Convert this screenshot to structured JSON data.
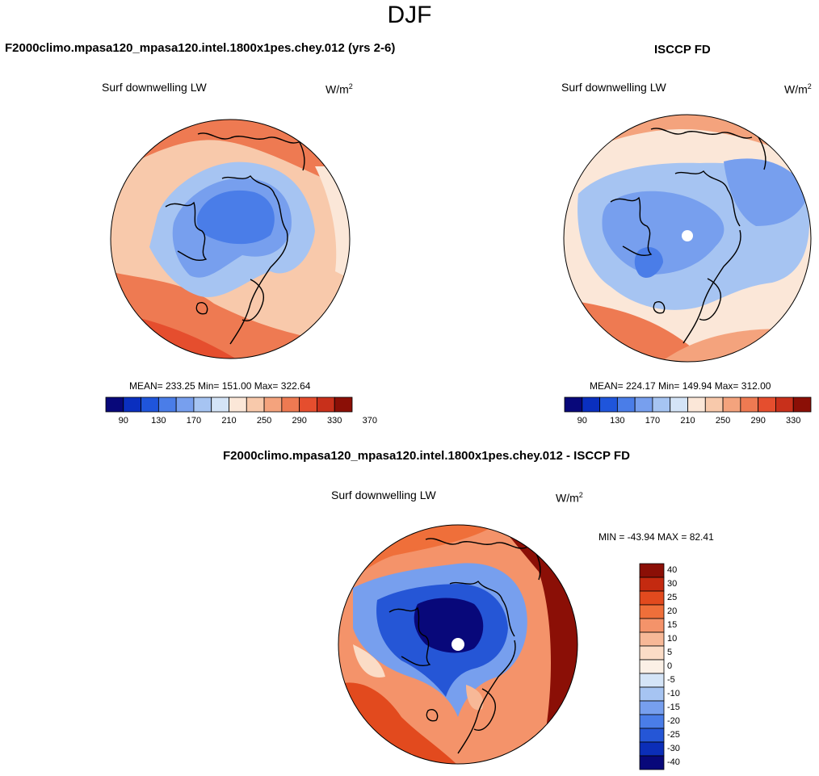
{
  "page_title": "DJF",
  "panels": {
    "model": {
      "title": "F2000climo.mpasa120_mpasa120.intel.1800x1pes.chey.012 (yrs 2-6)",
      "variable": "Surf downwelling LW",
      "units_base": "W/m",
      "units_exp": "2",
      "stats": {
        "mean": "233.25",
        "min": "151.00",
        "max": "322.64"
      },
      "stats_text": "MEAN= 233.25  Min= 151.00  Max= 322.64"
    },
    "obs": {
      "title": "ISCCP FD",
      "variable": "Surf downwelling LW",
      "units_base": "W/m",
      "units_exp": "2",
      "stats": {
        "mean": "224.17",
        "min": "149.94",
        "max": "312.00"
      },
      "stats_text": "MEAN= 224.17  Min= 149.94  Max= 312.00"
    },
    "diff": {
      "title": "F2000climo.mpasa120_mpasa120.intel.1800x1pes.chey.012 - ISCCP FD",
      "variable": "Surf downwelling LW",
      "units_base": "W/m",
      "units_exp": "2",
      "stats_text": "MIN = -43.94 MAX =  82.41"
    }
  },
  "colorbar_abs": {
    "ticks": [
      "90",
      "130",
      "170",
      "210",
      "250",
      "290",
      "330",
      "370"
    ],
    "colors": [
      "#08087a",
      "#0a2fbf",
      "#1f55db",
      "#4a7de8",
      "#779fee",
      "#a6c4f2",
      "#d4e4f7",
      "#fbe7d8",
      "#f8c9ab",
      "#f4a37d",
      "#ee7a52",
      "#e54e2e",
      "#c8301b",
      "#8b0f06"
    ]
  },
  "colorbar_diff": {
    "labels": [
      "40",
      "30",
      "25",
      "20",
      "15",
      "10",
      "5",
      "0",
      "-5",
      "-10",
      "-15",
      "-20",
      "-25",
      "-30",
      "-40"
    ],
    "colors": [
      "#8b0f06",
      "#c42a10",
      "#e24a1e",
      "#ef6f3a",
      "#f4936a",
      "#f7b897",
      "#fbdcc6",
      "#fbf0e6",
      "#d4e4f7",
      "#a6c4f2",
      "#779fee",
      "#4a7de8",
      "#2556d6",
      "#0b2eb8",
      "#08087a"
    ]
  },
  "map_colors": {
    "land_outline": "#000000",
    "pole_marker": "#ffffff"
  }
}
